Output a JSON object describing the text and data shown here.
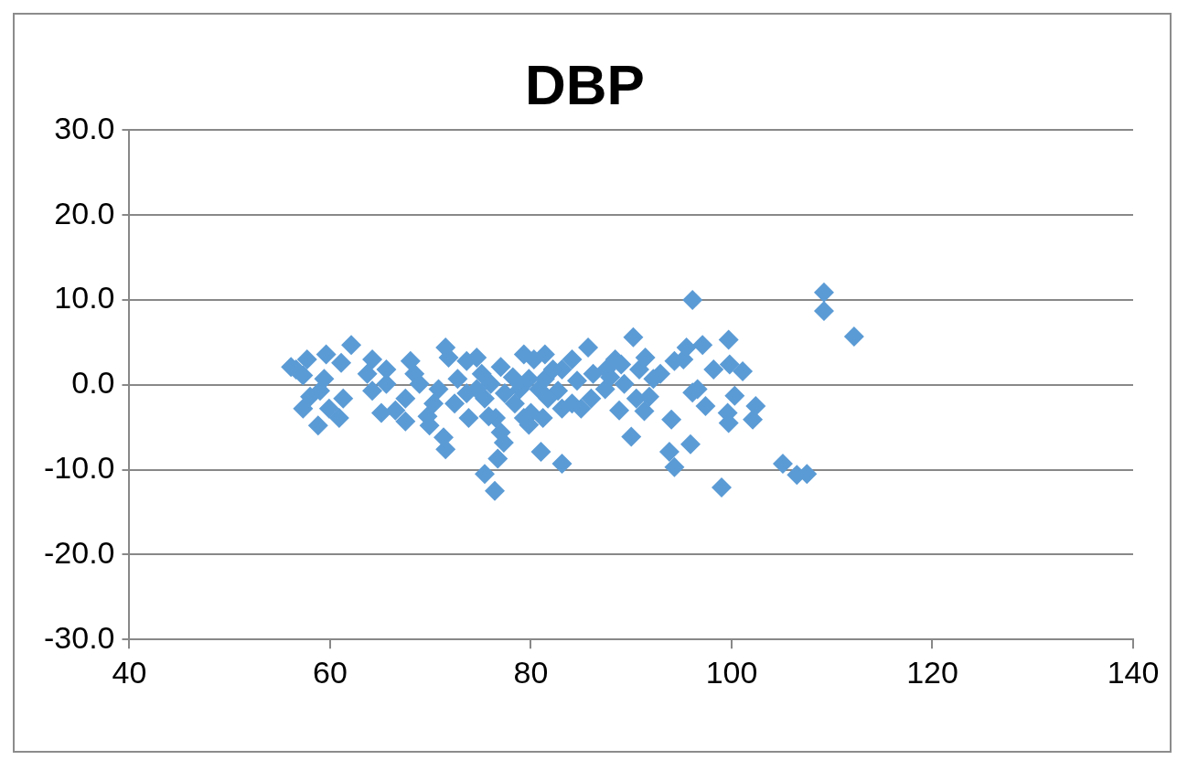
{
  "chart_data": {
    "type": "scatter",
    "title": "DBP",
    "marker": "diamond",
    "grid": "y",
    "legend": false,
    "xlim": [
      40,
      140
    ],
    "xticks": [
      40,
      60,
      80,
      100,
      120,
      140
    ],
    "ylim": [
      -30,
      30
    ],
    "yticks": [
      {
        "value": -30,
        "label": "-30.0"
      },
      {
        "value": -20,
        "label": "-20.0"
      },
      {
        "value": -10,
        "label": "-10.0"
      },
      {
        "value": 0,
        "label": "0.0"
      },
      {
        "value": 10,
        "label": "10.0"
      },
      {
        "value": 20,
        "label": "20.0"
      },
      {
        "value": 30,
        "label": "30.0"
      }
    ],
    "series": [
      {
        "color": "#5b9bd5",
        "x": [
          96.1,
          109.2,
          109.2,
          112.2,
          105.1,
          106.5,
          107.5,
          99.0,
          76.4,
          75.4,
          76.7,
          81.0,
          83.1,
          71.5,
          71.3,
          90.0,
          95.9,
          93.8,
          94.3,
          94.0,
          99.7,
          99.6,
          102.1,
          102.4,
          97.4,
          96.6,
          96.1,
          100.3,
          99.7,
          97.1,
          95.5,
          94.3,
          95.2,
          98.2,
          99.8,
          101.1,
          90.2,
          91.4,
          90.8,
          92.9,
          91.3,
          90.5,
          91.8,
          88.8,
          89.0,
          88.4,
          87.5,
          85.7,
          86.2,
          87.4,
          89.3,
          84.1,
          83.1,
          82.7,
          83.1,
          81.4,
          80.3,
          79.3,
          79.8,
          80.8,
          81.7,
          80.0,
          79.8,
          78.4,
          78.2,
          77.0,
          77.4,
          76.5,
          77.0,
          77.3,
          75.4,
          75.1,
          74.6,
          73.6,
          73.6,
          73.8,
          75.8,
          72.7,
          71.5,
          71.8,
          70.8,
          70.3,
          69.9,
          69.7,
          68.9,
          68.0,
          68.4,
          67.5,
          67.5,
          66.5,
          65.6,
          65.6,
          65.1,
          64.2,
          63.7,
          64.2,
          62.1,
          61.1,
          61.3,
          60.9,
          59.9,
          59.4,
          58.8,
          57.7,
          57.3,
          56.6,
          56.1,
          57.3,
          58.0,
          59.0,
          59.6,
          86.0,
          84.6,
          85.0,
          84.1,
          81.4,
          82.2,
          78.9,
          79.3,
          81.2,
          76.0,
          74.6,
          72.4,
          87.9,
          92.2
        ],
        "values": [
          10.0,
          10.9,
          8.7,
          5.7,
          -9.3,
          -10.6,
          -10.5,
          -12.1,
          -12.5,
          -10.5,
          -8.7,
          -7.9,
          -9.3,
          -7.6,
          -6.2,
          -6.1,
          -7.0,
          -7.9,
          -9.7,
          -4.1,
          -4.5,
          -3.3,
          -4.1,
          -2.5,
          -2.5,
          -0.5,
          -0.9,
          -1.3,
          5.3,
          4.7,
          4.4,
          2.8,
          3.0,
          1.8,
          2.4,
          1.6,
          5.6,
          3.2,
          1.8,
          1.3,
          -3.1,
          -1.6,
          -1.4,
          -3.0,
          2.4,
          3.0,
          1.8,
          4.4,
          1.3,
          -0.5,
          0.1,
          3.0,
          1.8,
          -0.7,
          -2.8,
          3.6,
          3.0,
          3.6,
          0.7,
          -0.5,
          -1.6,
          -3.3,
          -4.7,
          -2.2,
          0.9,
          2.1,
          -1.0,
          -3.9,
          -5.6,
          -6.8,
          -1.6,
          1.3,
          3.2,
          2.8,
          -1.0,
          -3.9,
          -3.7,
          0.7,
          4.4,
          3.2,
          -0.5,
          -2.2,
          -4.8,
          -3.7,
          0.1,
          2.8,
          1.3,
          -1.6,
          -4.3,
          -3.0,
          0.1,
          1.8,
          -3.3,
          3.0,
          1.3,
          -0.7,
          4.7,
          2.6,
          -1.6,
          -3.9,
          -2.8,
          0.7,
          -4.8,
          3.0,
          1.1,
          1.8,
          2.1,
          -2.8,
          -1.4,
          -0.7,
          3.6,
          -1.6,
          0.5,
          -2.8,
          -2.2,
          0.7,
          1.8,
          -0.5,
          -3.9,
          -3.9,
          0.1,
          -0.5,
          -2.2,
          0.9,
          0.7
        ]
      }
    ]
  }
}
